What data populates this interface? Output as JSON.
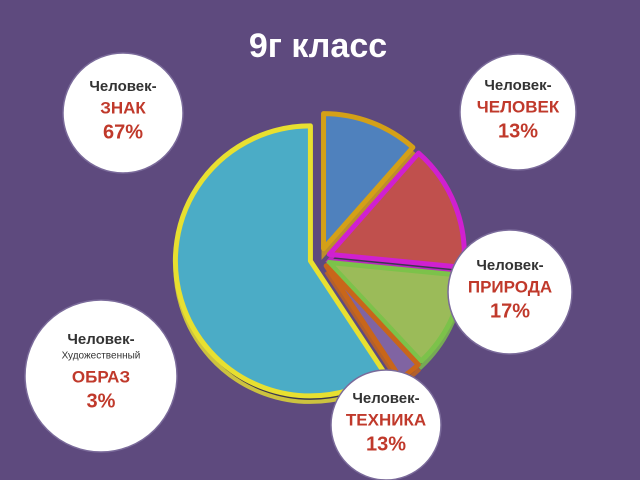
{
  "chart_data": {
    "type": "pie",
    "title": "9г класс",
    "categories": [
      "ЧЕЛОВЕК",
      "ПРИРОДА",
      "ТЕХНИКА",
      "ОБРАЗ",
      "ЗНАК"
    ],
    "prefixes": [
      "Человек-",
      "Человек-",
      "Человек-",
      "Человек-",
      "Человек-"
    ],
    "sublabels": [
      null,
      null,
      null,
      "Художественный",
      null
    ],
    "values": [
      13,
      17,
      13,
      3,
      67
    ],
    "value_labels": [
      "13%",
      "17%",
      "13%",
      "3%",
      "67%"
    ],
    "colors": [
      "#4f81bd",
      "#c0504d",
      "#9bbb59",
      "#8064a2",
      "#4bacc6"
    ],
    "border_colors": [
      "#d4a017",
      "#d020d0",
      "#7cc24a",
      "#c8661a",
      "#e8e030"
    ]
  }
}
